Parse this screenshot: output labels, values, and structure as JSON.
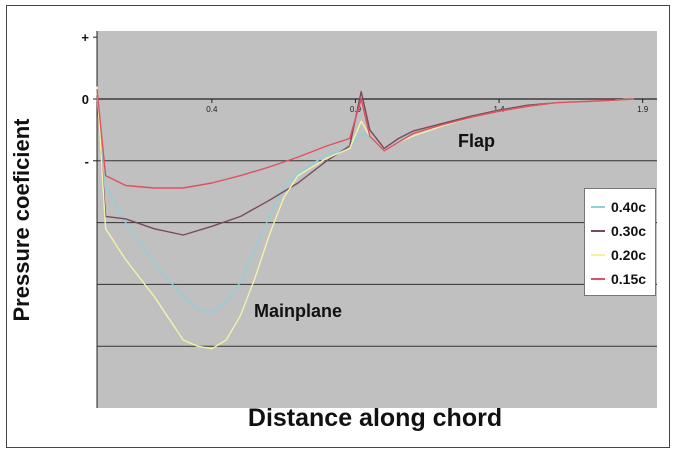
{
  "chart_data": {
    "type": "line",
    "xlabel": "Distance along chord",
    "ylabel": "Pressure coeficient",
    "xlim": [
      0,
      1.95
    ],
    "ylim": [
      -2.5,
      0.55
    ],
    "x_ticks": [
      0.4,
      0.9,
      1.4,
      1.9
    ],
    "x_tick_labels": [
      "0.4",
      "0.9",
      "1.4",
      "1.9"
    ],
    "y_ticks": [
      0.5,
      0,
      -0.5
    ],
    "y_tick_labels": [
      "+",
      "0",
      "-"
    ],
    "gridlines_y": [
      0,
      -0.5,
      -1.0,
      -1.5,
      -2.0
    ],
    "plot_background": "#c0c0c0",
    "grid": true,
    "legend_position": "right",
    "annotations": [
      {
        "text": "Flap",
        "x": 1.3,
        "y": -0.38
      },
      {
        "text": "Mainplane",
        "x": 0.57,
        "y": -1.72
      }
    ],
    "series": [
      {
        "name": "0.40c",
        "color": "#8fd0d8",
        "x": [
          0,
          0.03,
          0.1,
          0.2,
          0.3,
          0.35,
          0.4,
          0.45,
          0.5,
          0.55,
          0.6,
          0.65,
          0.7,
          0.8,
          0.88,
          0.92,
          0.95,
          1.0,
          1.05,
          1.1,
          1.2,
          1.3,
          1.4,
          1.5,
          1.6,
          1.7,
          1.8,
          1.87
        ],
        "y": [
          0.05,
          -0.7,
          -1.0,
          -1.33,
          -1.6,
          -1.7,
          -1.73,
          -1.64,
          -1.48,
          -1.22,
          -0.95,
          -0.72,
          -0.6,
          -0.45,
          -0.38,
          -0.28,
          -0.32,
          -0.4,
          -0.33,
          -0.28,
          -0.22,
          -0.15,
          -0.1,
          -0.06,
          -0.03,
          -0.02,
          -0.01,
          0.0
        ]
      },
      {
        "name": "0.30c",
        "color": "#7a4a5a",
        "x": [
          0,
          0.03,
          0.1,
          0.2,
          0.3,
          0.4,
          0.5,
          0.6,
          0.7,
          0.8,
          0.88,
          0.92,
          0.95,
          1.0,
          1.05,
          1.1,
          1.2,
          1.3,
          1.4,
          1.5,
          1.6,
          1.7,
          1.8,
          1.87
        ],
        "y": [
          0.03,
          -0.95,
          -0.97,
          -1.05,
          -1.1,
          -1.03,
          -0.95,
          -0.82,
          -0.68,
          -0.5,
          -0.38,
          0.06,
          -0.25,
          -0.4,
          -0.32,
          -0.26,
          -0.2,
          -0.14,
          -0.09,
          -0.05,
          -0.03,
          -0.02,
          -0.01,
          0.0
        ]
      },
      {
        "name": "0.20c",
        "color": "#f2f2a8",
        "x": [
          0,
          0.03,
          0.1,
          0.2,
          0.3,
          0.35,
          0.4,
          0.45,
          0.5,
          0.55,
          0.6,
          0.65,
          0.7,
          0.8,
          0.88,
          0.92,
          0.95,
          1.0,
          1.05,
          1.1,
          1.2,
          1.3,
          1.4,
          1.5,
          1.6,
          1.7,
          1.8,
          1.87
        ],
        "y": [
          0.1,
          -1.05,
          -1.3,
          -1.6,
          -1.95,
          -2.0,
          -2.02,
          -1.95,
          -1.75,
          -1.45,
          -1.1,
          -0.8,
          -0.62,
          -0.48,
          -0.4,
          -0.18,
          -0.3,
          -0.42,
          -0.35,
          -0.3,
          -0.22,
          -0.15,
          -0.1,
          -0.06,
          -0.03,
          -0.02,
          -0.01,
          0.0
        ]
      },
      {
        "name": "0.15c",
        "color": "#e05060",
        "x": [
          0,
          0.03,
          0.1,
          0.2,
          0.3,
          0.4,
          0.5,
          0.6,
          0.7,
          0.8,
          0.88,
          0.92,
          0.95,
          1.0,
          1.05,
          1.1,
          1.2,
          1.3,
          1.4,
          1.5,
          1.6,
          1.7,
          1.8,
          1.87
        ],
        "y": [
          0.08,
          -0.62,
          -0.7,
          -0.72,
          -0.72,
          -0.68,
          -0.62,
          -0.55,
          -0.47,
          -0.38,
          -0.32,
          0.0,
          -0.3,
          -0.42,
          -0.35,
          -0.28,
          -0.21,
          -0.15,
          -0.1,
          -0.06,
          -0.03,
          -0.02,
          -0.01,
          0.0
        ]
      }
    ]
  }
}
